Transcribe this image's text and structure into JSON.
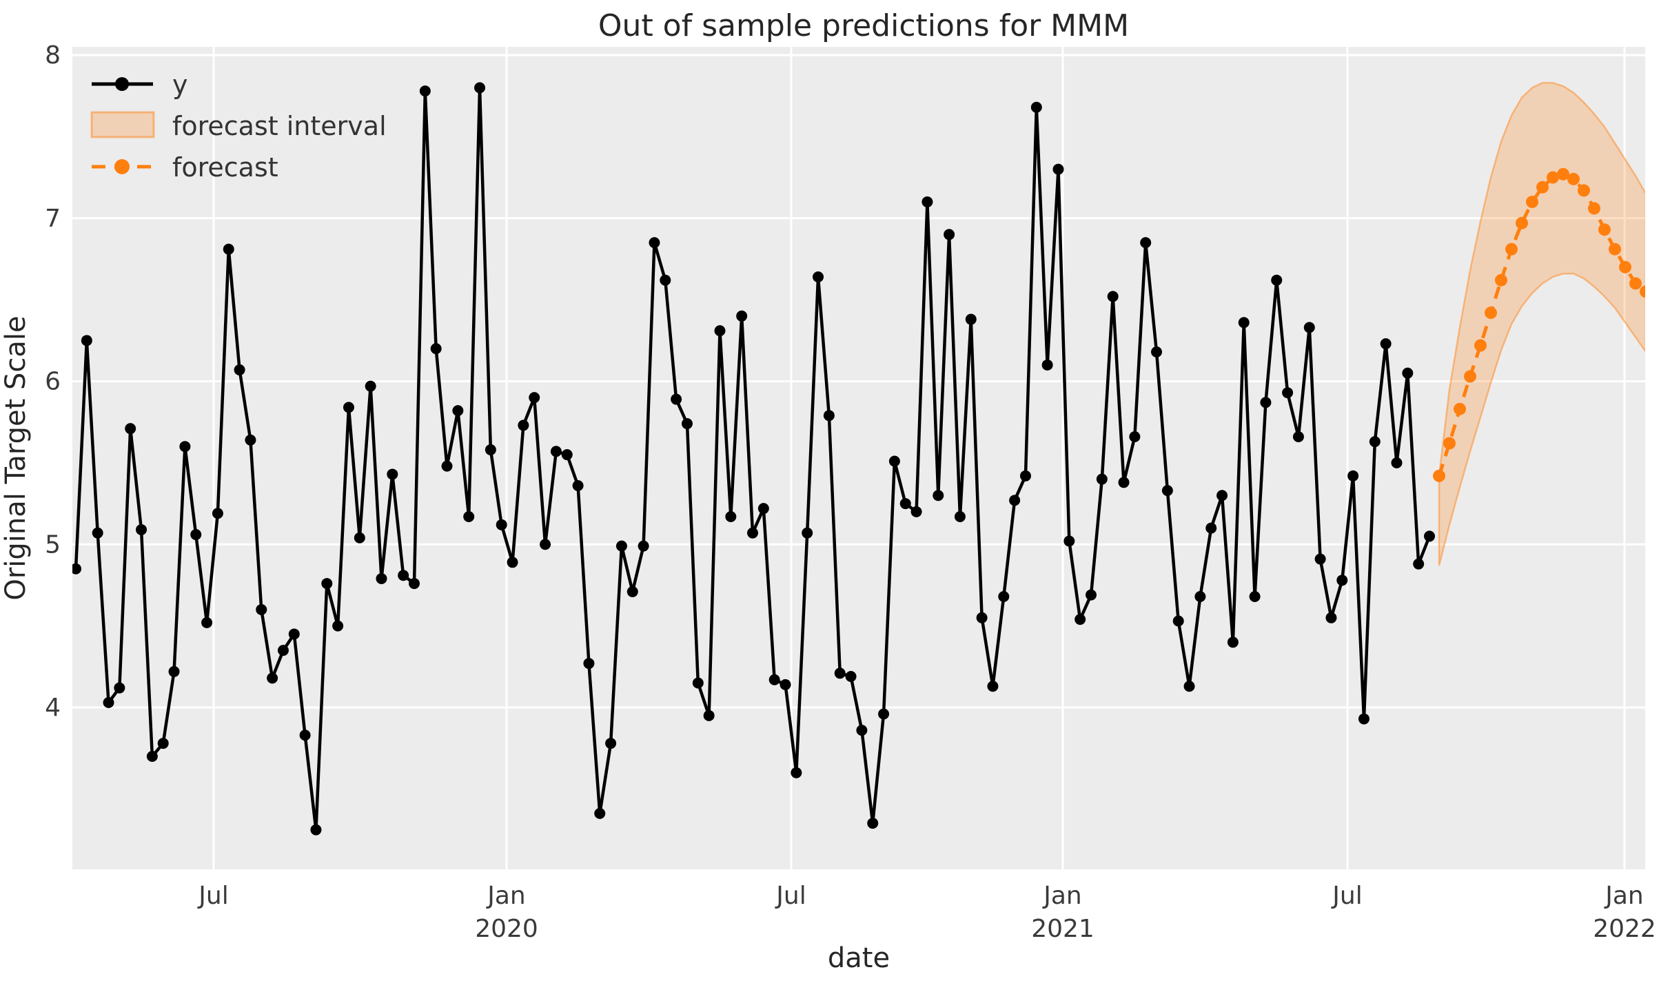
{
  "title": "Out of sample predictions for MMM",
  "axes": {
    "x_label": "date",
    "y_label": "Original Target Scale",
    "x_ticks": [
      {
        "month": "Jul",
        "year": ""
      },
      {
        "month": "Jan",
        "year": "2020"
      },
      {
        "month": "Jul",
        "year": ""
      },
      {
        "month": "Jan",
        "year": "2021"
      },
      {
        "month": "Jul",
        "year": ""
      },
      {
        "month": "Jan",
        "year": "2022"
      }
    ],
    "y_ticks": [
      "8",
      "7",
      "6",
      "5",
      "4"
    ]
  },
  "legend": {
    "items": [
      {
        "label": "y",
        "type": "line-marker",
        "color": "#000000"
      },
      {
        "label": "forecast interval",
        "type": "band",
        "color": "#f6d0ad"
      },
      {
        "label": "forecast",
        "type": "dashed-line-marker",
        "color": "#ff7f0e"
      }
    ]
  },
  "colors": {
    "observed": "#000000",
    "forecast": "#ff7f0e",
    "interval_fill": "rgba(255,127,14,0.25)",
    "interval_edge": "rgba(255,127,14,0.45)",
    "plot_background": "#ececec",
    "grid": "#ffffff",
    "text": "#262626"
  },
  "chart_data": {
    "type": "line",
    "title": "Out of sample predictions for MMM",
    "xlabel": "date",
    "ylabel": "Original Target Scale",
    "x_unit": "weekly",
    "x_tick_labels": [
      "Jul",
      "Jan 2020",
      "Jul",
      "Jan 2021",
      "Jul",
      "Jan 2022"
    ],
    "y_tick_values": [
      8,
      7,
      6,
      5,
      4
    ],
    "ylim": [
      3.0,
      8.05
    ],
    "grid": true,
    "legend_position": "upper left",
    "series": [
      {
        "name": "y",
        "style": "solid line with circle markers",
        "color": "#000000",
        "values": [
          4.85,
          6.25,
          5.07,
          4.03,
          4.12,
          5.71,
          5.09,
          3.7,
          3.78,
          4.22,
          5.6,
          5.06,
          4.52,
          5.19,
          6.81,
          6.07,
          5.64,
          4.6,
          4.18,
          4.35,
          4.45,
          3.83,
          3.25,
          4.76,
          4.5,
          5.84,
          5.04,
          5.97,
          4.79,
          5.43,
          4.81,
          4.76,
          7.78,
          6.2,
          5.48,
          5.82,
          5.17,
          7.8,
          5.58,
          5.12,
          4.89,
          5.73,
          5.9,
          5.0,
          5.57,
          5.55,
          5.36,
          4.27,
          3.35,
          3.78,
          4.99,
          4.71,
          4.99,
          6.85,
          6.62,
          5.89,
          5.74,
          4.15,
          3.95,
          6.31,
          5.17,
          6.4,
          5.07,
          5.22,
          4.17,
          4.14,
          3.6,
          5.07,
          6.64,
          5.79,
          4.21,
          4.19,
          3.86,
          3.29,
          3.96,
          5.51,
          5.25,
          5.2,
          7.1,
          5.3,
          6.9,
          5.17,
          6.38,
          4.55,
          4.13,
          4.68,
          5.27,
          5.42,
          7.68,
          6.1,
          7.3,
          5.02,
          4.54,
          4.69,
          5.4,
          6.52,
          5.38,
          5.66,
          6.85,
          6.18,
          5.33,
          4.53,
          4.13,
          4.68,
          5.1,
          5.3,
          4.4,
          6.36,
          4.68,
          5.87,
          6.62,
          5.93,
          5.66,
          6.33,
          4.91,
          4.55,
          4.78,
          5.42,
          3.93,
          5.63,
          6.23,
          5.5,
          6.05,
          4.88,
          5.05
        ]
      },
      {
        "name": "forecast",
        "style": "dashed line with circle markers",
        "color": "#ff7f0e",
        "values": [
          5.42,
          5.62,
          5.83,
          6.03,
          6.22,
          6.42,
          6.62,
          6.81,
          6.97,
          7.1,
          7.19,
          7.25,
          7.27,
          7.24,
          7.17,
          7.06,
          6.93,
          6.81,
          6.7,
          6.6,
          6.55
        ]
      }
    ],
    "forecast_interval": {
      "name": "forecast interval",
      "lower": [
        4.87,
        5.12,
        5.35,
        5.57,
        5.78,
        5.99,
        6.19,
        6.35,
        6.46,
        6.54,
        6.6,
        6.64,
        6.66,
        6.66,
        6.63,
        6.58,
        6.52,
        6.45,
        6.36,
        6.27,
        6.18
      ],
      "upper": [
        5.42,
        5.95,
        6.33,
        6.68,
        6.98,
        7.25,
        7.47,
        7.63,
        7.74,
        7.8,
        7.83,
        7.83,
        7.81,
        7.77,
        7.71,
        7.64,
        7.56,
        7.46,
        7.36,
        7.26,
        7.15
      ]
    }
  }
}
